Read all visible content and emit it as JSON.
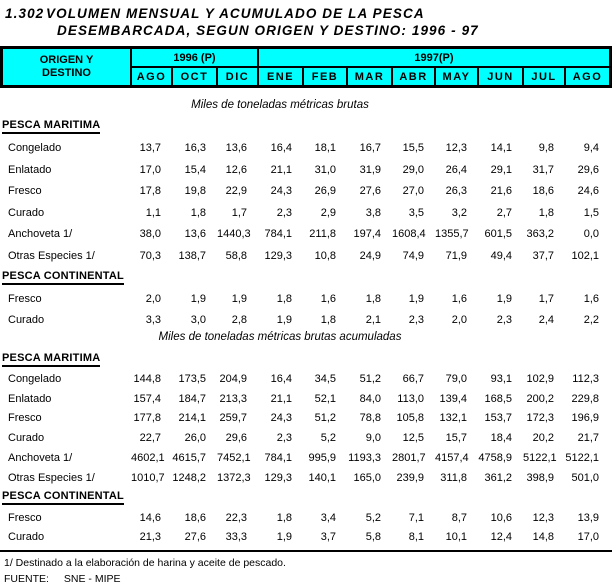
{
  "title": {
    "number": "1.302",
    "line1": "VOLUMEN MENSUAL Y ACUMULADO DE LA PESCA",
    "line2": "DESEMBARCADA, SEGUN ORIGEN Y DESTINO: 1996 - 97"
  },
  "colors": {
    "header_bg": "#00ffff",
    "border": "#000000",
    "text": "#000000",
    "page_bg": "#ffffff"
  },
  "table": {
    "origin_line1": "ORIGEN Y",
    "origin_line2": "DESTINO",
    "year_groups": [
      {
        "label": "1996 (P)",
        "months": [
          "AGO",
          "OCT",
          "DIC"
        ]
      },
      {
        "label": "1997(P)",
        "months": [
          "ENE",
          "FEB",
          "MAR",
          "ABR",
          "MAY",
          "JUN",
          "JUL",
          "AGO"
        ]
      }
    ]
  },
  "blocks": [
    {
      "caption": "Miles de toneladas métricas brutas",
      "groups": [
        {
          "heading": "PESCA MARITIMA",
          "rows": [
            {
              "label": "Congelado",
              "values": [
                "13,7",
                "16,3",
                "13,6",
                "16,4",
                "18,1",
                "16,7",
                "15,5",
                "12,3",
                "14,1",
                "9,8",
                "9,4"
              ]
            },
            {
              "label": "Enlatado",
              "values": [
                "17,0",
                "15,4",
                "12,6",
                "21,1",
                "31,0",
                "31,9",
                "29,0",
                "26,4",
                "29,1",
                "31,7",
                "29,6"
              ]
            },
            {
              "label": "Fresco",
              "values": [
                "17,8",
                "19,8",
                "22,9",
                "24,3",
                "26,9",
                "27,6",
                "27,0",
                "26,3",
                "21,6",
                "18,6",
                "24,6"
              ]
            },
            {
              "label": "Curado",
              "values": [
                "1,1",
                "1,8",
                "1,7",
                "2,3",
                "2,9",
                "3,8",
                "3,5",
                "3,2",
                "2,7",
                "1,8",
                "1,5"
              ]
            },
            {
              "label": "Anchoveta 1/",
              "values": [
                "38,0",
                "13,6",
                "1440,3",
                "784,1",
                "211,8",
                "197,4",
                "1608,4",
                "1355,7",
                "601,5",
                "363,2",
                "0,0"
              ]
            },
            {
              "label": "Otras Especies 1/",
              "values": [
                "70,3",
                "138,7",
                "58,8",
                "129,3",
                "10,8",
                "24,9",
                "74,9",
                "71,9",
                "49,4",
                "37,7",
                "102,1"
              ]
            }
          ]
        },
        {
          "heading": "PESCA CONTINENTAL",
          "rows": [
            {
              "label": "Fresco",
              "values": [
                "2,0",
                "1,9",
                "1,9",
                "1,8",
                "1,6",
                "1,8",
                "1,9",
                "1,6",
                "1,9",
                "1,7",
                "1,6"
              ]
            },
            {
              "label": "Curado",
              "values": [
                "3,3",
                "3,0",
                "2,8",
                "1,9",
                "1,8",
                "2,1",
                "2,3",
                "2,0",
                "2,3",
                "2,4",
                "2,2"
              ]
            }
          ]
        }
      ]
    },
    {
      "caption": "Miles de toneladas métricas brutas acumuladas",
      "groups": [
        {
          "heading": "PESCA MARITIMA",
          "rows": [
            {
              "label": "Congelado",
              "values": [
                "144,8",
                "173,5",
                "204,9",
                "16,4",
                "34,5",
                "51,2",
                "66,7",
                "79,0",
                "93,1",
                "102,9",
                "112,3"
              ]
            },
            {
              "label": "Enlatado",
              "values": [
                "157,4",
                "184,7",
                "213,3",
                "21,1",
                "52,1",
                "84,0",
                "113,0",
                "139,4",
                "168,5",
                "200,2",
                "229,8"
              ]
            },
            {
              "label": "Fresco",
              "values": [
                "177,8",
                "214,1",
                "259,7",
                "24,3",
                "51,2",
                "78,8",
                "105,8",
                "132,1",
                "153,7",
                "172,3",
                "196,9"
              ]
            },
            {
              "label": "Curado",
              "values": [
                "22,7",
                "26,0",
                "29,6",
                "2,3",
                "5,2",
                "9,0",
                "12,5",
                "15,7",
                "18,4",
                "20,2",
                "21,7"
              ]
            },
            {
              "label": "Anchoveta 1/",
              "values": [
                "4602,1",
                "4615,7",
                "7452,1",
                "784,1",
                "995,9",
                "1193,3",
                "2801,7",
                "4157,4",
                "4758,9",
                "5122,1",
                "5122,1"
              ]
            },
            {
              "label": "Otras Especies 1/",
              "values": [
                "1010,7",
                "1248,2",
                "1372,3",
                "129,3",
                "140,1",
                "165,0",
                "239,9",
                "311,8",
                "361,2",
                "398,9",
                "501,0"
              ]
            }
          ]
        },
        {
          "heading": "PESCA CONTINENTAL",
          "rows": [
            {
              "label": "Fresco",
              "values": [
                "14,6",
                "18,6",
                "22,3",
                "1,8",
                "3,4",
                "5,2",
                "7,1",
                "8,7",
                "10,6",
                "12,3",
                "13,9"
              ]
            },
            {
              "label": "Curado",
              "values": [
                "21,3",
                "27,6",
                "33,3",
                "1,9",
                "3,7",
                "5,8",
                "8,1",
                "10,1",
                "12,4",
                "14,8",
                "17,0"
              ]
            }
          ]
        }
      ]
    }
  ],
  "footer": {
    "footnote": "1/ Destinado a la elaboración de harina y aceite de pescado.",
    "source_label": "FUENTE:",
    "source_value": "SNE - MIPE"
  }
}
